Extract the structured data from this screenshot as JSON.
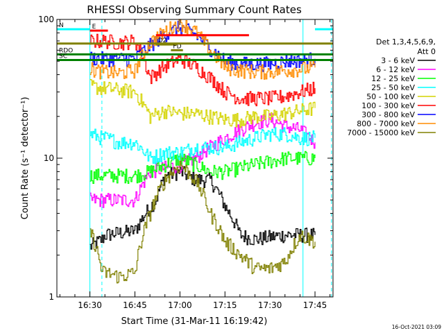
{
  "chart_data": {
    "type": "line",
    "title": "RHESSI Observing Summary Count Rates",
    "xlabel": "Start Time (31-Mar-11 16:19:42)",
    "ylabel": "Count Rate (s⁻¹ detector⁻¹)",
    "yscale": "log",
    "ylim": [
      1,
      100
    ],
    "xlim_minutes_after_1619": [
      0,
      92
    ],
    "x_ticks": [
      {
        "label": "16:30",
        "min": 11
      },
      {
        "label": "16:45",
        "min": 26
      },
      {
        "label": "17:00",
        "min": 41
      },
      {
        "label": "17:15",
        "min": 56
      },
      {
        "label": "17:30",
        "min": 71
      },
      {
        "label": "17:45",
        "min": 86
      }
    ],
    "y_ticks": [
      {
        "label": "1",
        "value": 1
      },
      {
        "label": "10",
        "value": 10
      },
      {
        "label": "100",
        "value": 100
      }
    ],
    "grid": false,
    "legend_position": "right",
    "legend_title_lines": [
      "Det 1,3,4,5,6,9,",
      "Att 0"
    ],
    "timestamp": "16-Oct-2021 03:09",
    "series": [
      {
        "name": "3 - 6 keV",
        "color": "#000000",
        "x": [
          11,
          15,
          16,
          21,
          26,
          33,
          36,
          41,
          46,
          51,
          56,
          61,
          66,
          71,
          76,
          81,
          86
        ],
        "y": [
          2.3,
          2.6,
          2.8,
          2.9,
          3.0,
          5.0,
          7.5,
          8.0,
          7.0,
          7.0,
          4.5,
          2.8,
          2.6,
          2.7,
          2.8,
          2.8,
          2.8
        ]
      },
      {
        "name": "6 - 12 keV",
        "color": "#ff00ff",
        "x": [
          11,
          15,
          16,
          21,
          26,
          31,
          36,
          41,
          46,
          51,
          56,
          61,
          66,
          71,
          76,
          81,
          86
        ],
        "y": [
          5.0,
          5.0,
          5.0,
          5.0,
          5.0,
          8.0,
          8.5,
          9.0,
          10.0,
          12.0,
          14.0,
          16.0,
          18.0,
          19.0,
          17.0,
          16.0,
          13.0
        ]
      },
      {
        "name": "12 - 25 keV",
        "color": "#00ff00",
        "x": [
          11,
          15,
          16,
          21,
          26,
          31,
          36,
          41,
          46,
          51,
          56,
          61,
          66,
          71,
          76,
          81,
          86
        ],
        "y": [
          7.5,
          7.5,
          7.5,
          7.5,
          7.5,
          8.0,
          9.0,
          10.0,
          9.0,
          8.0,
          8.0,
          8.5,
          9.0,
          9.5,
          10.0,
          10.0,
          10.0
        ]
      },
      {
        "name": "25 - 50 keV",
        "color": "#00ffff",
        "x": [
          11,
          15,
          16,
          21,
          26,
          31,
          36,
          41,
          46,
          51,
          56,
          61,
          66,
          71,
          76,
          81,
          86
        ],
        "y": [
          15.0,
          14.0,
          14.0,
          13.0,
          13.0,
          10.0,
          11.0,
          11.0,
          12.0,
          12.0,
          12.0,
          13.0,
          14.0,
          15.0,
          15.0,
          14.0,
          14.0
        ]
      },
      {
        "name": "50 - 100 keV",
        "color": "#d4d400",
        "x": [
          11,
          15,
          16,
          21,
          26,
          31,
          36,
          41,
          46,
          51,
          56,
          61,
          66,
          71,
          76,
          81,
          86
        ],
        "y": [
          33.0,
          32.0,
          32.0,
          31.0,
          30.0,
          20.0,
          22.0,
          21.0,
          21.0,
          20.0,
          19.0,
          19.0,
          20.0,
          20.0,
          21.0,
          22.0,
          23.0
        ]
      },
      {
        "name": "100 - 300 keV",
        "color": "#ff0000",
        "x": [
          11,
          15,
          16,
          21,
          26,
          31,
          36,
          41,
          46,
          51,
          56,
          61,
          66,
          71,
          76,
          81,
          86
        ],
        "y": [
          70.0,
          70.0,
          70.0,
          68.0,
          70.0,
          38.0,
          46.0,
          52.0,
          46.0,
          38.0,
          30.0,
          27.0,
          27.0,
          27.0,
          28.0,
          30.0,
          32.0
        ]
      },
      {
        "name": "300 - 800 keV",
        "color": "#0000ff",
        "x": [
          11,
          15,
          16,
          21,
          26,
          31,
          36,
          41,
          46,
          51,
          56,
          61,
          66,
          71,
          76,
          81,
          86
        ],
        "y": [
          53.0,
          52.0,
          52.0,
          52.0,
          52.0,
          65.0,
          78.0,
          88.0,
          78.0,
          62.0,
          50.0,
          48.0,
          48.0,
          48.0,
          50.0,
          51.0,
          52.0
        ]
      },
      {
        "name": "800 - 7000 keV",
        "color": "#ff8c00",
        "x": [
          11,
          15,
          16,
          21,
          26,
          31,
          36,
          41,
          46,
          51,
          56,
          61,
          66,
          71,
          76,
          81,
          86
        ],
        "y": [
          44.0,
          42.0,
          42.0,
          41.0,
          43.0,
          68.0,
          82.0,
          95.0,
          82.0,
          60.0,
          45.0,
          43.0,
          42.0,
          42.0,
          43.0,
          44.0,
          45.0
        ]
      },
      {
        "name": "7000 - 15000 keV",
        "color": "#808000",
        "x": [
          11,
          15,
          16,
          21,
          26,
          31,
          36,
          41,
          46,
          51,
          56,
          61,
          66,
          71,
          76,
          81,
          86
        ],
        "y": [
          3.0,
          1.5,
          1.5,
          1.4,
          1.5,
          4.0,
          7.0,
          9.0,
          7.0,
          4.0,
          2.5,
          2.0,
          1.6,
          1.6,
          1.8,
          2.8,
          2.5
        ]
      }
    ],
    "flag_bars": [
      {
        "label": "N",
        "color": "#00ffff",
        "y": 85,
        "segments": [
          [
            0,
            11
          ],
          [
            86,
            92
          ]
        ]
      },
      {
        "label": "E",
        "color": "#ff0000",
        "y": 83,
        "segments": [
          [
            11,
            17
          ]
        ]
      },
      {
        "label": "",
        "color": "#ff0000",
        "y": 77,
        "segments": [
          [
            33,
            64
          ]
        ]
      },
      {
        "label": "D2",
        "color": "#808000",
        "y": 66,
        "segments": [
          [
            33,
            40
          ]
        ]
      },
      {
        "label": "FD",
        "color": "#808000",
        "y": 60,
        "segments": [
          [
            38,
            42
          ]
        ]
      },
      {
        "label": "",
        "color": "#808000",
        "y": 67,
        "segments": [
          [
            0,
            92
          ]
        ]
      },
      {
        "label": "RDO",
        "color": "#008000",
        "y": 56,
        "segments": [
          [
            0,
            92
          ]
        ]
      },
      {
        "label": "SC",
        "color": "#008000",
        "y": 51,
        "segments": [
          [
            0,
            92
          ]
        ]
      }
    ],
    "vertical_markers": [
      {
        "color": "#00ffff",
        "style": "solid",
        "min": 11
      },
      {
        "color": "#00ffff",
        "style": "dashed",
        "min": 15
      },
      {
        "color": "#00ffff",
        "style": "solid",
        "min": 82
      },
      {
        "color": "#00ffff",
        "style": "dashed",
        "min": 91.5
      }
    ]
  }
}
